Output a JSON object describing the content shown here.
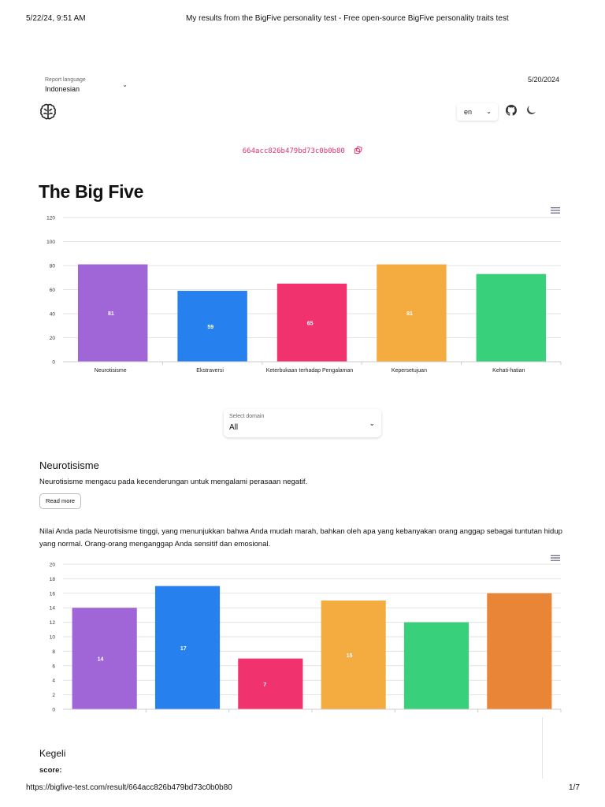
{
  "print_header": {
    "datetime": "5/22/24, 9:51 AM",
    "doc_title": "My results from the BigFive personality test - Free open-source BigFive personality traits test"
  },
  "print_footer": {
    "url": "https://bigfive-test.com/result/664acc826b479bd73c0b0b80",
    "page": "1/7"
  },
  "report_language": {
    "label": "Report language",
    "value": "Indonesian"
  },
  "report_date": "5/20/2024",
  "ui_language": "en",
  "icons": {
    "logo": "brain-icon",
    "github": "github-icon",
    "theme": "moon-icon",
    "copy": "copy-icon",
    "menu": "hamburger-icon",
    "chevron": "chevron-down-icon"
  },
  "result_id": "664acc826b479bd73c0b0b80",
  "main_title": "The Big Five",
  "domain_select": {
    "label": "Select domain",
    "value": "All"
  },
  "section": {
    "heading": "Neurotisisme",
    "description": "Neurotisisme mengacu pada kecenderungan untuk mengalami perasaan negatif.",
    "read_more": "Read more",
    "result_text": "Nilai Anda pada Neurotisisme tinggi, yang menunjukkan bahwa Anda mudah marah, bahkan oleh apa yang kebanyakan orang anggap sebagai tuntutan hidup yang normal. Orang-orang menganggap Anda sensitif dan emosional."
  },
  "subsection": {
    "heading": "Kegeli",
    "score_label": "score:"
  },
  "chart_data": [
    {
      "type": "bar",
      "categories": [
        "Neurotisisme",
        "Ekstraversi",
        "Keterbukaan terhadap Pengalaman",
        "Kepersetujuan",
        "Kehati-hatian"
      ],
      "values": [
        81,
        59,
        65,
        81,
        73
      ],
      "data_labels": [
        "81",
        "59",
        "65",
        "81",
        ""
      ],
      "colors": [
        "#a066d8",
        "#2680ee",
        "#f0336f",
        "#f4ac41",
        "#38d07a"
      ],
      "ylim": [
        0,
        120
      ],
      "yticks": [
        0,
        20,
        40,
        60,
        80,
        100,
        120
      ],
      "grid": true
    },
    {
      "type": "bar",
      "categories": [
        "",
        "",
        "",
        "",
        "",
        ""
      ],
      "values": [
        14,
        17,
        7,
        15,
        12,
        16
      ],
      "data_labels": [
        "14",
        "17",
        "7",
        "15",
        "",
        ""
      ],
      "colors": [
        "#a066d8",
        "#2680ee",
        "#f0336f",
        "#f4ac41",
        "#38d07a",
        "#e88537"
      ],
      "ylim": [
        0,
        20
      ],
      "yticks": [
        0,
        2,
        4,
        6,
        8,
        10,
        12,
        14,
        16,
        18,
        20
      ],
      "grid": true
    }
  ]
}
